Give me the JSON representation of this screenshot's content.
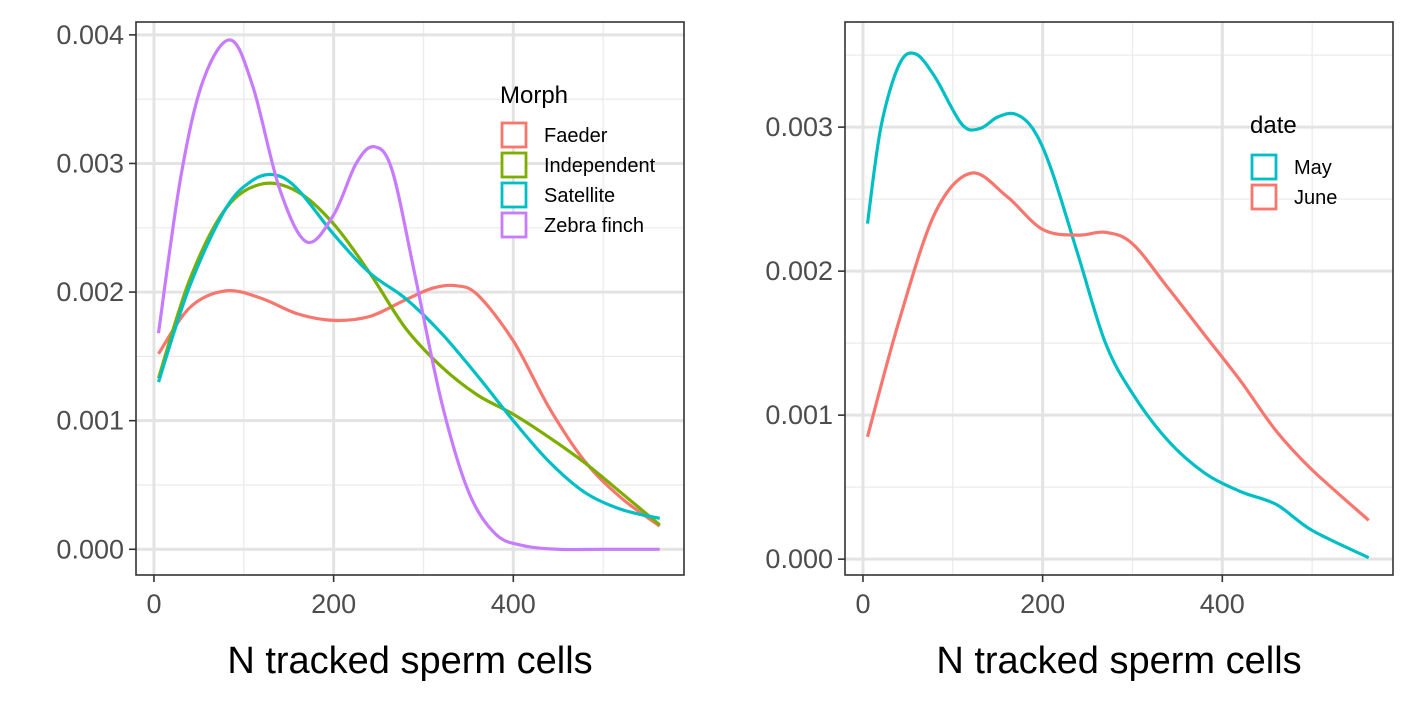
{
  "chart_data": [
    {
      "type": "line",
      "title": "",
      "xlabel": "N tracked sperm cells",
      "ylabel": "",
      "xlim": [
        -20,
        590
      ],
      "ylim": [
        -0.0002,
        0.0041
      ],
      "x_ticks": [
        0,
        200,
        400
      ],
      "x_tick_labels": [
        "0",
        "200",
        "400"
      ],
      "y_ticks": [
        0,
        0.001,
        0.002,
        0.003,
        0.004
      ],
      "y_tick_labels": [
        "0.000",
        "0.001",
        "0.002",
        "0.003",
        "0.004"
      ],
      "grid": true,
      "legend": {
        "title": "Morph",
        "placement": "top-right"
      },
      "series": [
        {
          "name": "Faeder",
          "color": "#F8766D",
          "x": [
            5,
            40,
            80,
            120,
            160,
            200,
            240,
            280,
            310,
            335,
            360,
            400,
            440,
            480,
            520,
            563
          ],
          "y": [
            0.00152,
            0.00188,
            0.00201,
            0.00195,
            0.00183,
            0.00178,
            0.00181,
            0.00194,
            0.00203,
            0.00205,
            0.00198,
            0.00162,
            0.0011,
            0.00068,
            0.0004,
            0.00018
          ]
        },
        {
          "name": "Independent",
          "color": "#7CAE00",
          "x": [
            5,
            40,
            80,
            120,
            160,
            200,
            240,
            280,
            320,
            360,
            400,
            440,
            480,
            520,
            563
          ],
          "y": [
            0.00133,
            0.0021,
            0.00265,
            0.00284,
            0.00278,
            0.00253,
            0.00215,
            0.00172,
            0.00142,
            0.0012,
            0.00105,
            0.00087,
            0.00067,
            0.00044,
            0.00019
          ]
        },
        {
          "name": "Satellite",
          "color": "#00BFC4",
          "x": [
            5,
            40,
            80,
            110,
            135,
            160,
            200,
            240,
            280,
            320,
            360,
            400,
            440,
            480,
            520,
            563
          ],
          "y": [
            0.0013,
            0.00205,
            0.00265,
            0.00287,
            0.00291,
            0.0028,
            0.00245,
            0.00215,
            0.00195,
            0.00168,
            0.00135,
            0.001,
            0.00068,
            0.00044,
            0.00031,
            0.00024
          ]
        },
        {
          "name": "Zebra finch",
          "color": "#C77CFF",
          "x": [
            5,
            30,
            55,
            85,
            110,
            140,
            170,
            200,
            225,
            245,
            265,
            290,
            320,
            350,
            380,
            410,
            450,
            500,
            563
          ],
          "y": [
            0.00168,
            0.0029,
            0.00365,
            0.00396,
            0.0036,
            0.0028,
            0.00239,
            0.0026,
            0.003,
            0.00313,
            0.00295,
            0.00215,
            0.00115,
            0.00045,
            0.00012,
            3e-05,
            0.0,
            0.0,
            0.0
          ]
        }
      ]
    },
    {
      "type": "line",
      "title": "",
      "xlabel": "N tracked sperm cells",
      "ylabel": "",
      "xlim": [
        -20,
        590
      ],
      "ylim": [
        -0.00011,
        0.00373
      ],
      "x_ticks": [
        0,
        200,
        400
      ],
      "x_tick_labels": [
        "0",
        "200",
        "400"
      ],
      "y_ticks": [
        0,
        0.001,
        0.002,
        0.003
      ],
      "y_tick_labels": [
        "0.000",
        "0.001",
        "0.002",
        "0.003"
      ],
      "grid": true,
      "legend": {
        "title": "date",
        "placement": "top-right"
      },
      "series": [
        {
          "name": "May",
          "color": "#00BFC4",
          "x": [
            5,
            20,
            40,
            58,
            80,
            110,
            130,
            150,
            170,
            190,
            210,
            240,
            270,
            300,
            340,
            380,
            420,
            460,
            500,
            563
          ],
          "y": [
            0.00233,
            0.003,
            0.00343,
            0.00351,
            0.00335,
            0.00302,
            0.00299,
            0.00307,
            0.00309,
            0.00298,
            0.0027,
            0.0021,
            0.0015,
            0.00115,
            0.00082,
            0.0006,
            0.00047,
            0.00038,
            0.0002,
            1e-05
          ]
        },
        {
          "name": "June",
          "color": "#F8766D",
          "x": [
            5,
            40,
            80,
            120,
            160,
            200,
            240,
            270,
            300,
            340,
            380,
            420,
            460,
            500,
            563
          ],
          "y": [
            0.00085,
            0.00165,
            0.0024,
            0.00268,
            0.00252,
            0.00229,
            0.00225,
            0.00227,
            0.00219,
            0.00188,
            0.00156,
            0.00124,
            0.00089,
            0.00062,
            0.00027
          ]
        }
      ]
    }
  ]
}
